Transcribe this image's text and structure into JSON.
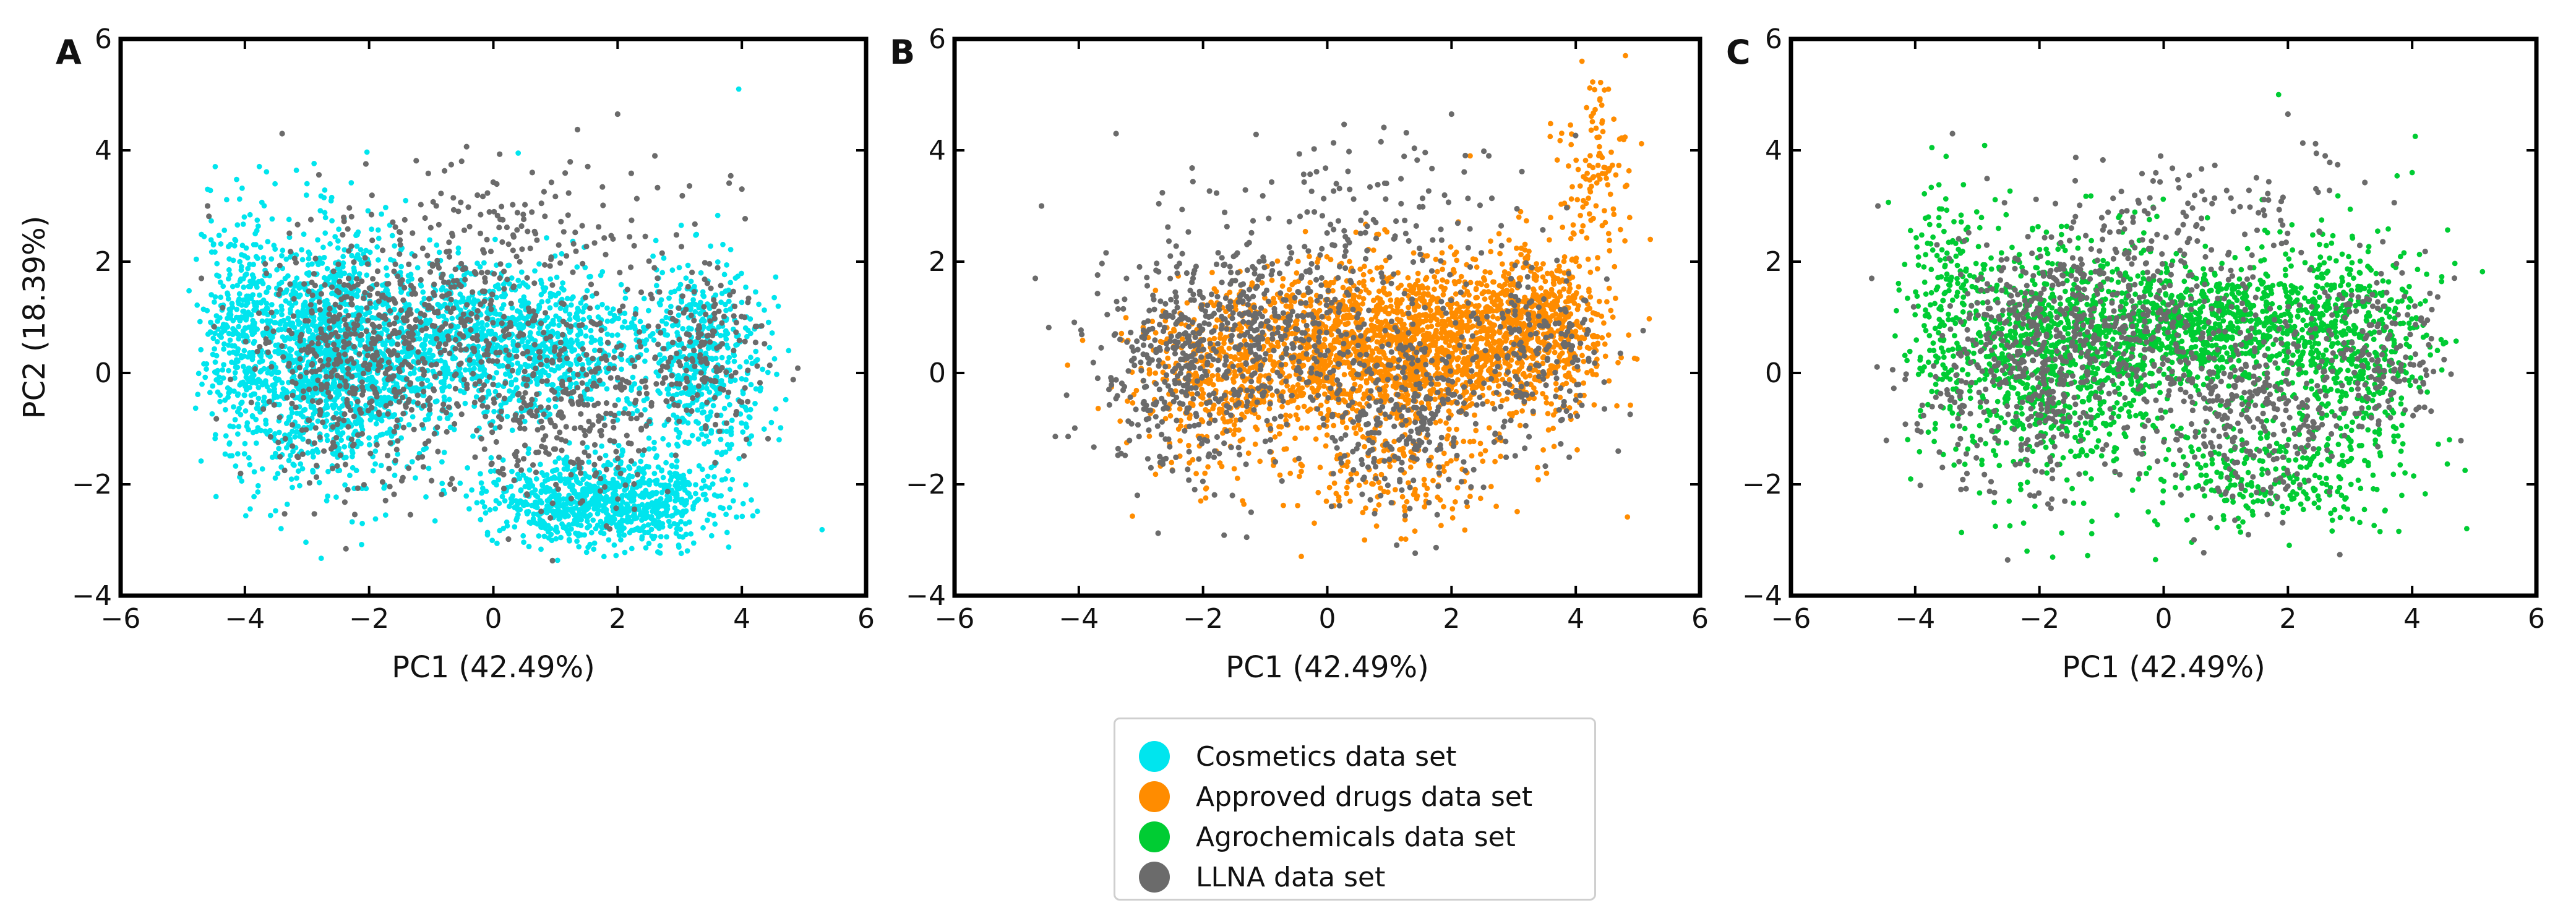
{
  "chart_data": [
    {
      "type": "scatter",
      "panel_label": "A",
      "title": "",
      "xlabel": "PC1 (42.49%)",
      "ylabel": "PC2 (18.39%)",
      "xlim": [
        -6,
        6
      ],
      "ylim": [
        -4,
        6
      ],
      "xticks": [
        -6,
        -4,
        -2,
        0,
        2,
        4,
        6
      ],
      "yticks": [
        -4,
        -2,
        0,
        2,
        4,
        6
      ],
      "xtick_labels": [
        "−6",
        "−4",
        "−2",
        "0",
        "2",
        "4",
        "6"
      ],
      "ytick_labels": [
        "−4",
        "−2",
        "0",
        "2",
        "4",
        "6"
      ],
      "grid": false,
      "series": [
        {
          "name": "Cosmetics data set",
          "color": "#00e5ee",
          "clusters": [
            {
              "center": [
                -2.6,
                0.3
              ],
              "spread": [
                1.0,
                1.3
              ],
              "n": 1500
            },
            {
              "center": [
                0.2,
                0.5
              ],
              "spread": [
                1.5,
                0.8
              ],
              "n": 1100
            },
            {
              "center": [
                1.8,
                -2.3
              ],
              "spread": [
                1.1,
                0.45
              ],
              "n": 900
            },
            {
              "center": [
                3.4,
                0.3
              ],
              "spread": [
                0.6,
                1.0
              ],
              "n": 450
            },
            {
              "center": [
                -4.1,
                0.9
              ],
              "spread": [
                0.35,
                1.2
              ],
              "n": 250
            }
          ],
          "outliers": [
            [
              3.95,
              5.1
            ],
            [
              0.4,
              3.95
            ],
            [
              -3.0,
              3.4
            ],
            [
              4.6,
              -1.2
            ],
            [
              -4.6,
              3.3
            ]
          ]
        },
        {
          "name": "LLNA data set",
          "color": "#6b6b6b",
          "clusters": [
            {
              "center": [
                -2.3,
                0.1
              ],
              "spread": [
                0.9,
                1.3
              ],
              "n": 420
            },
            {
              "center": [
                -0.8,
                0.8
              ],
              "spread": [
                1.0,
                0.9
              ],
              "n": 260
            },
            {
              "center": [
                1.2,
                -0.6
              ],
              "spread": [
                0.9,
                1.1
              ],
              "n": 330
            },
            {
              "center": [
                3.4,
                0.4
              ],
              "spread": [
                0.6,
                0.9
              ],
              "n": 170
            },
            {
              "center": [
                0.5,
                2.6
              ],
              "spread": [
                1.6,
                0.9
              ],
              "n": 140
            }
          ],
          "outliers": [
            [
              -3.4,
              4.3
            ],
            [
              2.0,
              4.65
            ],
            [
              -4.7,
              1.7
            ],
            [
              -4.6,
              3.0
            ],
            [
              2.6,
              3.9
            ]
          ]
        }
      ]
    },
    {
      "type": "scatter",
      "panel_label": "B",
      "title": "",
      "xlabel": "PC1 (42.49%)",
      "ylabel": "",
      "xlim": [
        -6,
        6
      ],
      "ylim": [
        -4,
        6
      ],
      "xticks": [
        -6,
        -4,
        -2,
        0,
        2,
        4,
        6
      ],
      "yticks": [
        -4,
        -2,
        0,
        2,
        4,
        6
      ],
      "xtick_labels": [
        "−6",
        "−4",
        "−2",
        "0",
        "2",
        "4",
        "6"
      ],
      "ytick_labels": [
        "−4",
        "−2",
        "0",
        "2",
        "4",
        "6"
      ],
      "grid": false,
      "series": [
        {
          "name": "Approved drugs data set",
          "color": "#ff8c00",
          "clusters": [
            {
              "center": [
                1.2,
                0.5
              ],
              "spread": [
                1.5,
                0.8
              ],
              "n": 1700
            },
            {
              "center": [
                -1.6,
                -0.1
              ],
              "spread": [
                1.0,
                0.9
              ],
              "n": 450
            },
            {
              "center": [
                3.4,
                0.9
              ],
              "spread": [
                0.6,
                0.8
              ],
              "n": 500
            },
            {
              "center": [
                4.3,
                3.8
              ],
              "spread": [
                0.4,
                0.9
              ],
              "n": 110
            },
            {
              "center": [
                1.0,
                -1.8
              ],
              "spread": [
                1.2,
                0.6
              ],
              "n": 180
            }
          ],
          "outliers": [
            [
              4.8,
              5.7
            ],
            [
              4.1,
              5.6
            ],
            [
              5.2,
              2.4
            ],
            [
              0.6,
              -3.0
            ],
            [
              2.3,
              3.9
            ]
          ]
        },
        {
          "name": "LLNA data set",
          "color": "#6b6b6b",
          "clusters": [
            {
              "center": [
                -2.3,
                0.1
              ],
              "spread": [
                0.9,
                1.3
              ],
              "n": 420
            },
            {
              "center": [
                -0.8,
                0.8
              ],
              "spread": [
                1.0,
                0.9
              ],
              "n": 260
            },
            {
              "center": [
                1.2,
                -0.6
              ],
              "spread": [
                0.9,
                1.1
              ],
              "n": 330
            },
            {
              "center": [
                3.4,
                0.4
              ],
              "spread": [
                0.6,
                0.9
              ],
              "n": 170
            },
            {
              "center": [
                0.5,
                2.6
              ],
              "spread": [
                1.6,
                0.9
              ],
              "n": 140
            }
          ],
          "outliers": [
            [
              -3.4,
              4.3
            ],
            [
              2.0,
              4.65
            ],
            [
              -4.7,
              1.7
            ],
            [
              -4.6,
              3.0
            ],
            [
              2.6,
              3.9
            ]
          ]
        }
      ]
    },
    {
      "type": "scatter",
      "panel_label": "C",
      "title": "",
      "xlabel": "PC1 (42.49%)",
      "ylabel": "",
      "xlim": [
        -6,
        6
      ],
      "ylim": [
        -4,
        6
      ],
      "xticks": [
        -6,
        -4,
        -2,
        0,
        2,
        4,
        6
      ],
      "yticks": [
        -4,
        -2,
        0,
        2,
        4,
        6
      ],
      "xtick_labels": [
        "−6",
        "−4",
        "−2",
        "0",
        "2",
        "4",
        "6"
      ],
      "ytick_labels": [
        "−4",
        "−2",
        "0",
        "2",
        "4",
        "6"
      ],
      "grid": false,
      "series": [
        {
          "name": "Agrochemicals data set",
          "color": "#00cc33",
          "clusters": [
            {
              "center": [
                -1.8,
                0.2
              ],
              "spread": [
                1.1,
                1.3
              ],
              "n": 900
            },
            {
              "center": [
                0.8,
                0.8
              ],
              "spread": [
                1.4,
                0.7
              ],
              "n": 900
            },
            {
              "center": [
                3.0,
                0.6
              ],
              "spread": [
                0.8,
                1.1
              ],
              "n": 450
            },
            {
              "center": [
                1.8,
                -1.8
              ],
              "spread": [
                1.2,
                0.6
              ],
              "n": 260
            },
            {
              "center": [
                -3.5,
                1.4
              ],
              "spread": [
                0.4,
                1.1
              ],
              "n": 160
            }
          ],
          "outliers": [
            [
              1.85,
              5.0
            ],
            [
              4.05,
              4.25
            ],
            [
              4.0,
              3.6
            ],
            [
              -2.2,
              -3.2
            ],
            [
              4.6,
              -1.2
            ]
          ]
        },
        {
          "name": "LLNA data set",
          "color": "#6b6b6b",
          "clusters": [
            {
              "center": [
                -2.3,
                0.1
              ],
              "spread": [
                0.9,
                1.3
              ],
              "n": 420
            },
            {
              "center": [
                -0.8,
                0.8
              ],
              "spread": [
                1.0,
                0.9
              ],
              "n": 260
            },
            {
              "center": [
                1.2,
                -0.6
              ],
              "spread": [
                0.9,
                1.1
              ],
              "n": 330
            },
            {
              "center": [
                3.4,
                0.4
              ],
              "spread": [
                0.6,
                0.9
              ],
              "n": 170
            },
            {
              "center": [
                0.5,
                2.6
              ],
              "spread": [
                1.6,
                0.9
              ],
              "n": 140
            }
          ],
          "outliers": [
            [
              -3.4,
              4.3
            ],
            [
              2.0,
              4.65
            ],
            [
              -4.7,
              1.7
            ],
            [
              -4.6,
              3.0
            ],
            [
              2.6,
              3.9
            ]
          ]
        }
      ]
    }
  ],
  "legend": {
    "placement": "bottom-center",
    "items": [
      {
        "label": "Cosmetics data set",
        "color": "#00e5ee"
      },
      {
        "label": "Approved drugs data set",
        "color": "#ff8c00"
      },
      {
        "label": "Agrochemicals data set",
        "color": "#00cc33"
      },
      {
        "label": "LLNA data set",
        "color": "#6b6b6b"
      }
    ]
  }
}
